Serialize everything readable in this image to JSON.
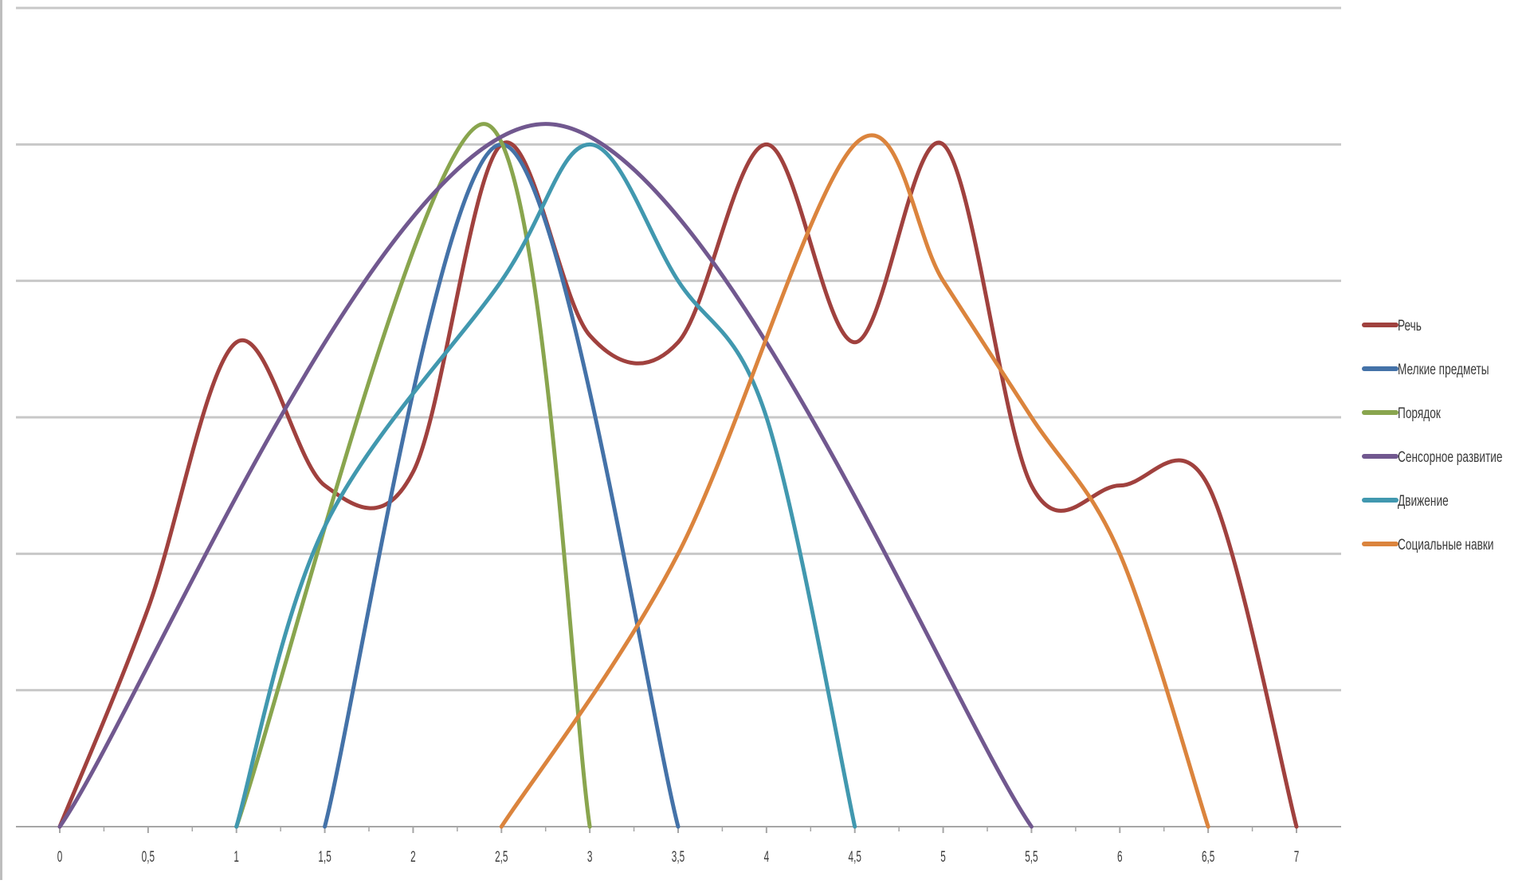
{
  "chart_data": {
    "type": "line",
    "title": "",
    "xlabel": "",
    "ylabel": "",
    "xlim": [
      0,
      7
    ],
    "ylim": [
      0,
      6
    ],
    "x_ticks": [
      "0",
      "0,5",
      "1",
      "1,5",
      "2",
      "2,5",
      "3",
      "3,5",
      "4",
      "4,5",
      "5",
      "5,5",
      "6",
      "6,5",
      "7"
    ],
    "y_ticks_shown": false,
    "grid": true,
    "legend_position": "right",
    "series": [
      {
        "name": "Речь",
        "color": "#A0413E",
        "points": [
          [
            0,
            0
          ],
          [
            0.5,
            1.6
          ],
          [
            1,
            3.55
          ],
          [
            1.5,
            2.5
          ],
          [
            2,
            2.6
          ],
          [
            2.5,
            5
          ],
          [
            3,
            3.6
          ],
          [
            3.5,
            3.55
          ],
          [
            4,
            5
          ],
          [
            4.5,
            3.55
          ],
          [
            5,
            5
          ],
          [
            5.5,
            2.5
          ],
          [
            6,
            2.5
          ],
          [
            6.5,
            2.5
          ],
          [
            7,
            0
          ]
        ]
      },
      {
        "name": "Мелкие предметы",
        "color": "#4472A8",
        "points": [
          [
            1.5,
            0
          ],
          [
            2.5,
            5
          ],
          [
            3.5,
            0
          ]
        ]
      },
      {
        "name": "Порядок",
        "color": "#89A54E",
        "points": [
          [
            1,
            0
          ],
          [
            2.4,
            5.15
          ],
          [
            3,
            0
          ]
        ]
      },
      {
        "name": "Сенсорное развитие",
        "color": "#71588F",
        "points": [
          [
            0,
            0
          ],
          [
            2.75,
            5.15
          ],
          [
            5.5,
            0
          ]
        ]
      },
      {
        "name": "Движение",
        "color": "#4198AF",
        "points": [
          [
            1,
            0
          ],
          [
            1.5,
            2.2
          ],
          [
            2.5,
            4
          ],
          [
            3,
            5
          ],
          [
            3.5,
            4
          ],
          [
            4,
            3
          ],
          [
            4.5,
            0
          ]
        ]
      },
      {
        "name": "Социальные навки",
        "color": "#DB843D",
        "points": [
          [
            2.5,
            0
          ],
          [
            3.5,
            2
          ],
          [
            4.5,
            5
          ],
          [
            5,
            4
          ],
          [
            5.5,
            3
          ],
          [
            6,
            2
          ],
          [
            6.5,
            0
          ]
        ]
      }
    ]
  }
}
